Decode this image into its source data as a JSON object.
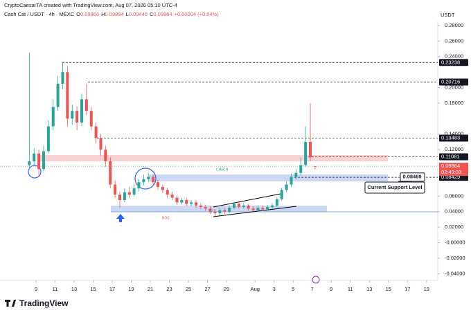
{
  "header": {
    "credit": "CryptoCaesarTA created with TradingView.com, Aug 07, 2026 05:10 UTC-4",
    "legend": [
      "Cash Cat / USDT · 4h · MEXC",
      "O",
      "0.09866",
      "H",
      "0.09894",
      "L",
      "0.09440",
      "C",
      "0.09864",
      "+0.00004 (+0.04%)"
    ],
    "currency": "USDT",
    "logo": "TradingView"
  },
  "chart_data": {
    "type": "candlestick",
    "up_color": "#26a69a",
    "down_color": "#ef5350",
    "x": [
      8.3,
      8.8,
      9.3,
      9.8,
      10.3,
      10.8,
      11.3,
      11.8,
      12.3,
      12.8,
      13.3,
      13.8,
      14.3,
      14.8,
      15.3,
      15.8,
      16.3,
      16.8,
      17.3,
      17.8,
      18.3,
      18.8,
      19.3,
      19.8,
      20.3,
      20.8,
      21.3,
      21.8,
      22.3,
      22.8,
      23.3,
      23.8,
      24.3,
      24.8,
      25.3,
      25.8,
      26.3,
      26.8,
      27.3,
      27.8,
      28.3,
      28.8,
      29.3,
      29.8,
      30.3,
      30.8,
      31.3,
      31.8,
      32.3,
      32.8,
      33.3,
      33.8,
      34.3,
      34.8,
      35.3,
      35.8,
      36.3,
      36.8,
      37.3,
      37.8,
      38.3
    ],
    "open": [
      0.1,
      0.105,
      0.115,
      0.095,
      0.118,
      0.15,
      0.175,
      0.205,
      0.22,
      0.16,
      0.17,
      0.155,
      0.185,
      0.17,
      0.15,
      0.135,
      0.12,
      0.105,
      0.075,
      0.062,
      0.055,
      0.065,
      0.062,
      0.07,
      0.078,
      0.082,
      0.085,
      0.078,
      0.072,
      0.068,
      0.062,
      0.058,
      0.052,
      0.055,
      0.05,
      0.052,
      0.048,
      0.046,
      0.044,
      0.04,
      0.038,
      0.042,
      0.04,
      0.045,
      0.05,
      0.046,
      0.048,
      0.044,
      0.042,
      0.045,
      0.043,
      0.046,
      0.048,
      0.056,
      0.068,
      0.075,
      0.085,
      0.09,
      0.1,
      0.13,
      0.09866
    ],
    "high": [
      0.245,
      0.122,
      0.12,
      0.125,
      0.158,
      0.185,
      0.215,
      0.232,
      0.228,
      0.178,
      0.176,
      0.192,
      0.205,
      0.175,
      0.155,
      0.14,
      0.125,
      0.11,
      0.08,
      0.066,
      0.07,
      0.072,
      0.075,
      0.082,
      0.088,
      0.09,
      0.088,
      0.081,
      0.075,
      0.071,
      0.066,
      0.061,
      0.058,
      0.058,
      0.055,
      0.055,
      0.051,
      0.049,
      0.047,
      0.043,
      0.045,
      0.045,
      0.048,
      0.053,
      0.053,
      0.051,
      0.05,
      0.047,
      0.048,
      0.048,
      0.049,
      0.051,
      0.059,
      0.071,
      0.079,
      0.089,
      0.095,
      0.11,
      0.15,
      0.18,
      0.09894
    ],
    "low": [
      0.095,
      0.1,
      0.085,
      0.092,
      0.115,
      0.145,
      0.17,
      0.198,
      0.15,
      0.152,
      0.145,
      0.15,
      0.165,
      0.145,
      0.128,
      0.112,
      0.098,
      0.07,
      0.058,
      0.045,
      0.052,
      0.058,
      0.06,
      0.066,
      0.074,
      0.078,
      0.074,
      0.068,
      0.064,
      0.058,
      0.055,
      0.049,
      0.049,
      0.047,
      0.047,
      0.045,
      0.043,
      0.041,
      0.037,
      0.034,
      0.035,
      0.037,
      0.038,
      0.043,
      0.044,
      0.044,
      0.041,
      0.04,
      0.04,
      0.041,
      0.041,
      0.044,
      0.046,
      0.054,
      0.065,
      0.072,
      0.082,
      0.087,
      0.098,
      0.105,
      0.0944
    ],
    "close": [
      0.105,
      0.115,
      0.095,
      0.118,
      0.15,
      0.175,
      0.205,
      0.22,
      0.16,
      0.17,
      0.155,
      0.185,
      0.17,
      0.15,
      0.135,
      0.12,
      0.105,
      0.075,
      0.062,
      0.055,
      0.065,
      0.062,
      0.07,
      0.078,
      0.082,
      0.085,
      0.078,
      0.072,
      0.068,
      0.062,
      0.058,
      0.052,
      0.055,
      0.05,
      0.052,
      0.048,
      0.046,
      0.044,
      0.04,
      0.038,
      0.042,
      0.04,
      0.045,
      0.05,
      0.046,
      0.048,
      0.044,
      0.042,
      0.045,
      0.043,
      0.046,
      0.048,
      0.056,
      0.068,
      0.075,
      0.085,
      0.09,
      0.1,
      0.13,
      0.11,
      0.09864
    ],
    "xlim": [
      5.22,
      51.18
    ],
    "xticks": [
      9,
      11,
      13,
      15,
      17,
      19,
      21,
      23,
      25,
      27,
      29,
      {
        "value": 32,
        "label": "Aug"
      },
      {
        "value": 34,
        "label": "3"
      },
      {
        "value": 36,
        "label": "5"
      },
      {
        "value": 38,
        "label": "7"
      },
      {
        "value": 40,
        "label": "9"
      },
      {
        "value": 42,
        "label": "11"
      },
      {
        "value": 44,
        "label": "13"
      },
      {
        "value": 46,
        "label": "15"
      },
      {
        "value": 48,
        "label": "17"
      },
      {
        "value": 50,
        "label": "19"
      }
    ],
    "ylim": [
      -0.0486,
      0.2862
    ],
    "yticks": [
      {
        "value": 0.28,
        "label": "0.28000"
      },
      {
        "value": 0.26,
        "label": "0.26000"
      },
      {
        "value": 0.24,
        "label": "0.24000"
      },
      {
        "value": 0.2,
        "label": "0.20000"
      },
      {
        "value": 0.18,
        "label": "0.18000"
      },
      {
        "value": 0.14,
        "label": "0.14000"
      },
      {
        "value": 0.12,
        "label": "0.12000"
      },
      {
        "value": 0.06,
        "label": "0.06000"
      },
      {
        "value": 0.04,
        "label": "0.04000"
      },
      {
        "value": 0.02,
        "label": "0.02000"
      },
      {
        "value": 0,
        "label": "-0.00000"
      },
      {
        "value": -0.02,
        "label": "-0.02000"
      },
      {
        "value": -0.04,
        "label": "-0.04000"
      }
    ],
    "levels": [
      0.23238,
      0.20716,
      0.13483,
      0.11081,
      0.08429
    ],
    "last_price": 0.09864,
    "countdown": "02:49:33",
    "callout": 0.08469,
    "annotations": [
      "CHoCH",
      "BOS",
      "BOS",
      "Current Support Level"
    ]
  }
}
